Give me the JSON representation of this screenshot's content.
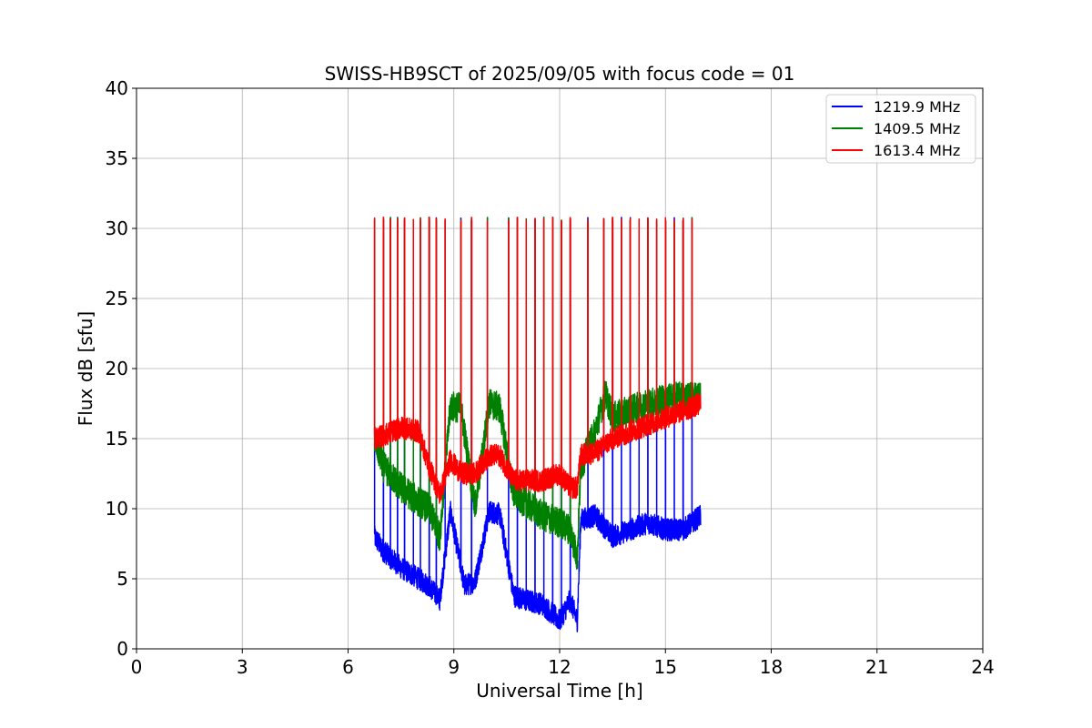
{
  "chart_data": {
    "type": "line",
    "title": "SWISS-HB9SCT of 2025/09/05 with focus code = 01",
    "xlabel": "Universal Time [h]",
    "ylabel": "Flux dB [sfu]",
    "xlim": [
      0,
      24
    ],
    "ylim": [
      0,
      40
    ],
    "xticks": [
      0,
      3,
      6,
      9,
      12,
      15,
      18,
      21,
      24
    ],
    "yticks": [
      0,
      5,
      10,
      15,
      20,
      25,
      30,
      35,
      40
    ],
    "grid": true,
    "legend_position": "top-right",
    "x_range_data": [
      6.75,
      16.0
    ],
    "calibration_spike_times": [
      6.75,
      7.0,
      7.2,
      7.4,
      7.6,
      7.85,
      8.05,
      8.3,
      8.5,
      8.75,
      9.2,
      9.5,
      9.95,
      10.55,
      10.8,
      11.05,
      11.3,
      11.55,
      11.8,
      12.05,
      12.3,
      12.8,
      13.25,
      13.5,
      13.75,
      14.0,
      14.25,
      14.5,
      14.75,
      15.0,
      15.25,
      15.5,
      15.75
    ],
    "series": [
      {
        "name": "1219.9 MHz",
        "color": "#0000ff",
        "x": [
          6.75,
          7.0,
          7.5,
          8.0,
          8.3,
          8.6,
          8.9,
          9.3,
          9.6,
          10.0,
          10.3,
          10.7,
          11.0,
          11.5,
          12.0,
          12.3,
          12.5,
          12.6,
          13.0,
          13.5,
          14.0,
          14.5,
          15.0,
          15.5,
          16.0
        ],
        "y": [
          8.0,
          7.0,
          5.8,
          5.0,
          4.5,
          3.5,
          9.8,
          4.5,
          4.8,
          9.8,
          9.6,
          3.8,
          3.5,
          3.2,
          2.0,
          3.5,
          2.0,
          9.2,
          9.5,
          8.0,
          8.5,
          9.0,
          8.5,
          8.5,
          9.5
        ]
      },
      {
        "name": "1409.5 MHz",
        "color": "#008000",
        "x": [
          6.75,
          7.0,
          7.5,
          8.0,
          8.3,
          8.6,
          8.9,
          9.2,
          9.6,
          10.0,
          10.3,
          10.7,
          11.0,
          11.5,
          12.0,
          12.3,
          12.5,
          12.6,
          13.0,
          13.3,
          13.5,
          14.0,
          14.5,
          15.0,
          15.5,
          16.0
        ],
        "y": [
          15.0,
          13.0,
          11.5,
          10.5,
          10.0,
          8.0,
          17.3,
          17.2,
          10.0,
          17.5,
          17.2,
          11.0,
          10.5,
          9.5,
          9.0,
          8.5,
          6.5,
          13.0,
          15.5,
          18.2,
          16.5,
          17.0,
          17.5,
          17.8,
          18.0,
          18.0
        ]
      },
      {
        "name": "1613.4 MHz",
        "color": "#ff0000",
        "x": [
          6.75,
          7.0,
          7.5,
          8.0,
          8.3,
          8.6,
          8.9,
          9.2,
          9.6,
          10.0,
          10.3,
          10.7,
          11.0,
          11.5,
          12.0,
          12.3,
          12.5,
          12.6,
          13.0,
          13.5,
          14.0,
          14.5,
          15.0,
          15.5,
          16.0
        ],
        "y": [
          15.0,
          15.2,
          15.8,
          15.5,
          13.0,
          11.0,
          13.5,
          12.5,
          12.5,
          13.8,
          13.8,
          12.0,
          12.0,
          12.0,
          12.5,
          11.5,
          11.5,
          13.8,
          14.0,
          15.0,
          15.5,
          16.0,
          16.5,
          17.0,
          17.5
        ]
      }
    ]
  }
}
